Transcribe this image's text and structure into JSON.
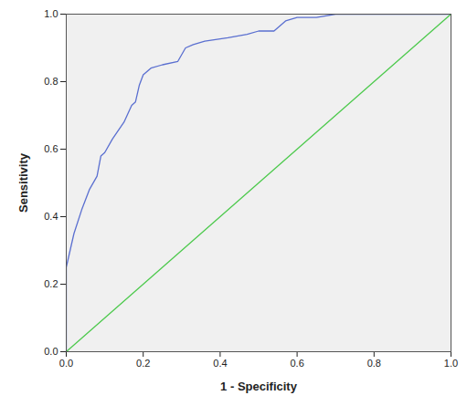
{
  "chart_data": {
    "type": "line",
    "x_label": "1 - Specificity",
    "y_label": "Sensitivity",
    "xlim": [
      0,
      1
    ],
    "ylim": [
      0,
      1
    ],
    "xticks": [
      {
        "value": 0,
        "label": "0.0"
      },
      {
        "value": 0.2,
        "label": "0.2"
      },
      {
        "value": 0.4,
        "label": "0.4"
      },
      {
        "value": 0.6,
        "label": "0.6"
      },
      {
        "value": 0.8,
        "label": "0.8"
      },
      {
        "value": 1,
        "label": "1.0"
      }
    ],
    "yticks": [
      {
        "value": 0,
        "label": "0.0"
      },
      {
        "value": 0.2,
        "label": "0.2"
      },
      {
        "value": 0.4,
        "label": "0.4"
      },
      {
        "value": 0.6,
        "label": "0.6"
      },
      {
        "value": 0.8,
        "label": "0.8"
      },
      {
        "value": 1,
        "label": "1.0"
      }
    ],
    "grid": false,
    "series": [
      {
        "color": "#5a6fd0",
        "x": [
          0,
          0,
          0.01,
          0.02,
          0.04,
          0.06,
          0.08,
          0.09,
          0.1,
          0.12,
          0.15,
          0.17,
          0.18,
          0.19,
          0.2,
          0.22,
          0.25,
          0.29,
          0.31,
          0.33,
          0.36,
          0.42,
          0.47,
          0.5,
          0.54,
          0.57,
          0.6,
          0.65,
          0.7,
          1
        ],
        "values": [
          0,
          0.25,
          0.3,
          0.35,
          0.42,
          0.48,
          0.52,
          0.58,
          0.59,
          0.63,
          0.68,
          0.73,
          0.74,
          0.79,
          0.82,
          0.84,
          0.85,
          0.86,
          0.9,
          0.91,
          0.92,
          0.93,
          0.94,
          0.95,
          0.95,
          0.98,
          0.99,
          0.99,
          1,
          1
        ]
      },
      {
        "color": "#4cc94c",
        "x": [
          0,
          1
        ],
        "values": [
          0,
          1
        ]
      }
    ]
  }
}
